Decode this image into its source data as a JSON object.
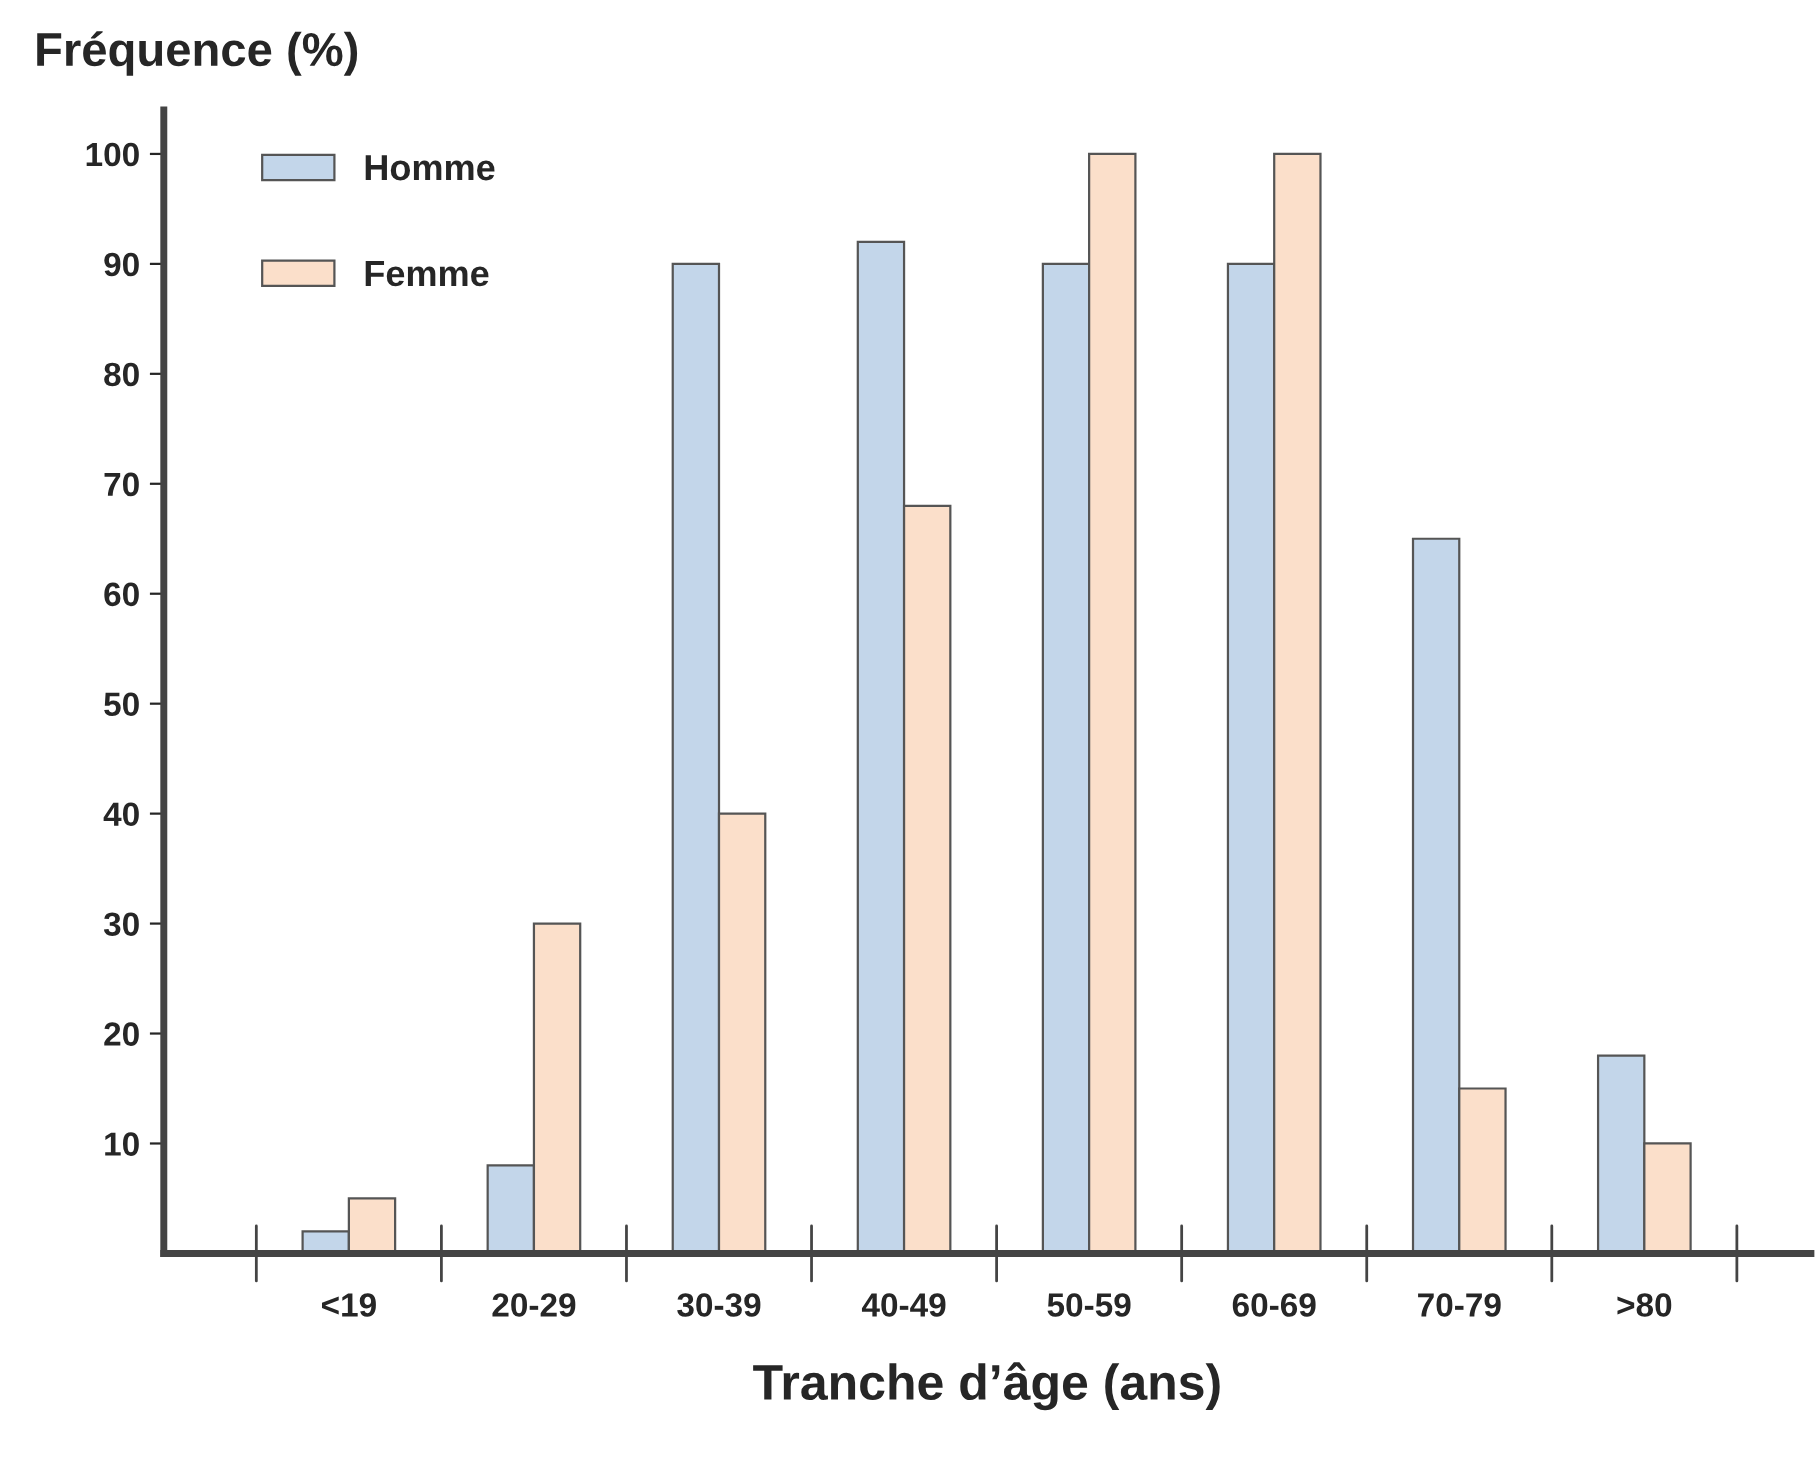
{
  "chart_data": {
    "type": "bar",
    "ylabel": "Fréquence (%)",
    "xlabel": "Tranche d’âge (ans)",
    "categories": [
      "<19",
      "20-29",
      "30-39",
      "40-49",
      "50-59",
      "60-69",
      "70-79",
      ">80"
    ],
    "series": [
      {
        "name": "Homme",
        "color": "#c3d6ea",
        "values": [
          2,
          8,
          90,
          92,
          90,
          90,
          65,
          18
        ]
      },
      {
        "name": "Femme",
        "color": "#fbdfca",
        "values": [
          5,
          30,
          40,
          68,
          100,
          100,
          15,
          10
        ]
      }
    ],
    "ylim": [
      0,
      104
    ],
    "yticks": [
      10,
      20,
      30,
      40,
      50,
      60,
      70,
      80,
      90,
      100
    ],
    "legend": "top left",
    "grid": false
  }
}
